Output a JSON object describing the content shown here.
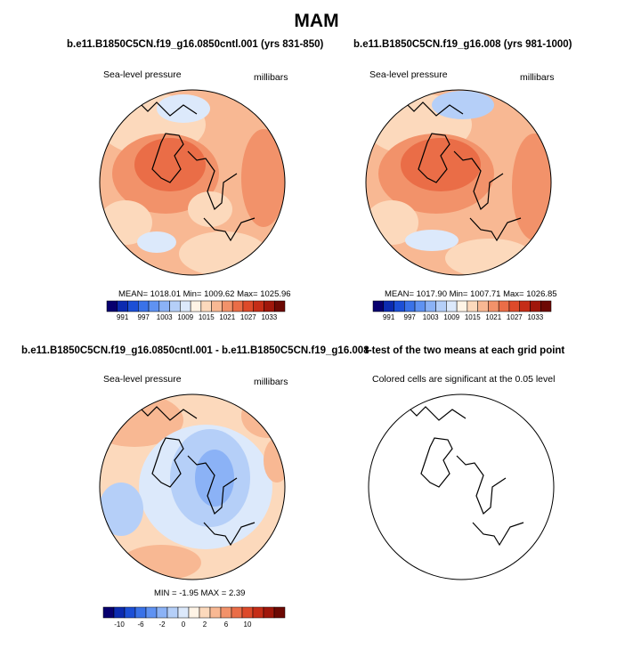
{
  "figure": {
    "title": "MAM"
  },
  "colors": {
    "diverging": [
      "#08006f",
      "#0c2bb0",
      "#1c4fd6",
      "#3a72e8",
      "#5f92f2",
      "#8bb2f6",
      "#b5cff8",
      "#dce9fb",
      "#fff4e6",
      "#fcd9bc",
      "#f8b893",
      "#f2926a",
      "#ea6d47",
      "#dd4a2a",
      "#c52d17",
      "#a0170b",
      "#6d0904"
    ],
    "coast": "#000000"
  },
  "chart_data": [
    {
      "type": "heatmap",
      "projection": "polar-stereographic",
      "title": "b.e11.B1850C5CN.f19_g16.0850cntl.001 (yrs 831-850)",
      "left_label": "Sea-level pressure",
      "right_label": "millibars",
      "stats": "MEAN= 1018.01  Min= 1009.62  Max= 1025.96",
      "mean": 1018.01,
      "min": 1009.62,
      "max": 1025.96,
      "colorbar_ticks": [
        "991",
        "997",
        "1003",
        "1009",
        "1015",
        "1021",
        "1027",
        "1033"
      ]
    },
    {
      "type": "heatmap",
      "projection": "polar-stereographic",
      "title": "b.e11.B1850C5CN.f19_g16.008 (yrs 981-1000)",
      "left_label": "Sea-level pressure",
      "right_label": "millibars",
      "stats": "MEAN= 1017.90  Min= 1007.71  Max= 1026.85",
      "mean": 1017.9,
      "min": 1007.71,
      "max": 1026.85,
      "colorbar_ticks": [
        "991",
        "997",
        "1003",
        "1009",
        "1015",
        "1021",
        "1027",
        "1033"
      ]
    },
    {
      "type": "heatmap",
      "projection": "polar-stereographic",
      "title": "b.e11.B1850C5CN.f19_g16.0850cntl.001 - b.e11.B1850C5CN.f19_g16.008",
      "left_label": "Sea-level pressure",
      "right_label": "millibars",
      "stats": "MIN =  -1.95 MAX =   2.39",
      "min": -1.95,
      "max": 2.39,
      "colorbar_ticks": [
        "-10",
        "-6",
        "-2",
        "0",
        "2",
        "6",
        "10"
      ]
    },
    {
      "type": "heatmap",
      "projection": "polar-stereographic",
      "title": "t-test of the two means at each grid point",
      "left_label": "Colored cells are significant at the 0.05 level",
      "right_label": ""
    }
  ]
}
